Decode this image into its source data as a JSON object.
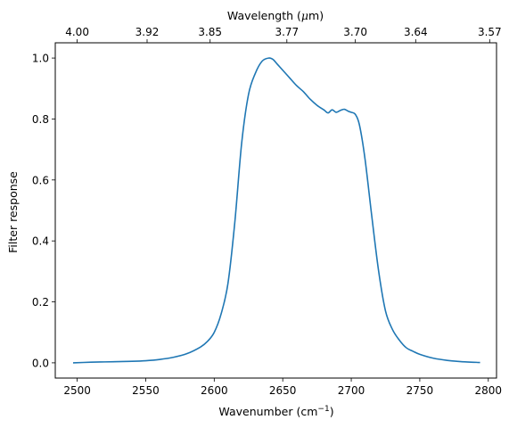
{
  "chart_data": {
    "type": "line",
    "xlabel": "Wavenumber (cm",
    "xlabel_sup": "−1",
    "xlabel_suffix": ")",
    "ylabel": "Filter response",
    "top_xlabel_prefix": "Wavelength (",
    "top_xlabel_mu": "μ",
    "top_xlabel_suffix": "m)",
    "xlim": [
      2484,
      2806
    ],
    "ylim": [
      -0.05,
      1.05
    ],
    "x_ticks": [
      2500,
      2550,
      2600,
      2650,
      2700,
      2750,
      2800
    ],
    "y_ticks": [
      0.0,
      0.2,
      0.4,
      0.6,
      0.8,
      1.0
    ],
    "y_tick_labels": [
      "0.0",
      "0.2",
      "0.4",
      "0.6",
      "0.8",
      "1.0"
    ],
    "top_ticks": [
      {
        "label": "4.00",
        "x": 2500
      },
      {
        "label": "3.92",
        "x": 2551
      },
      {
        "label": "3.85",
        "x": 2597
      },
      {
        "label": "3.77",
        "x": 2653
      },
      {
        "label": "3.70",
        "x": 2703
      },
      {
        "label": "3.64",
        "x": 2747
      },
      {
        "label": "3.57",
        "x": 2801
      }
    ],
    "line_color": "#1f77b4",
    "grid": false,
    "series": [
      {
        "x": [
          2497,
          2510,
          2520,
          2530,
          2540,
          2550,
          2560,
          2570,
          2580,
          2590,
          2595,
          2600,
          2605,
          2610,
          2615,
          2620,
          2625,
          2630,
          2635,
          2640,
          2643,
          2646,
          2650,
          2655,
          2660,
          2665,
          2670,
          2675,
          2680,
          2683,
          2686,
          2689,
          2692,
          2695,
          2698,
          2700,
          2703,
          2706,
          2710,
          2715,
          2720,
          2725,
          2730,
          2735,
          2740,
          2745,
          2750,
          2760,
          2770,
          2780,
          2794
        ],
        "y": [
          0.0,
          0.002,
          0.003,
          0.004,
          0.005,
          0.007,
          0.011,
          0.018,
          0.03,
          0.052,
          0.07,
          0.1,
          0.16,
          0.26,
          0.46,
          0.72,
          0.88,
          0.95,
          0.99,
          1.0,
          0.995,
          0.98,
          0.96,
          0.935,
          0.91,
          0.89,
          0.865,
          0.845,
          0.83,
          0.82,
          0.83,
          0.822,
          0.828,
          0.832,
          0.825,
          0.822,
          0.815,
          0.78,
          0.67,
          0.48,
          0.3,
          0.17,
          0.11,
          0.075,
          0.05,
          0.038,
          0.028,
          0.015,
          0.008,
          0.004,
          0.001
        ]
      }
    ]
  }
}
